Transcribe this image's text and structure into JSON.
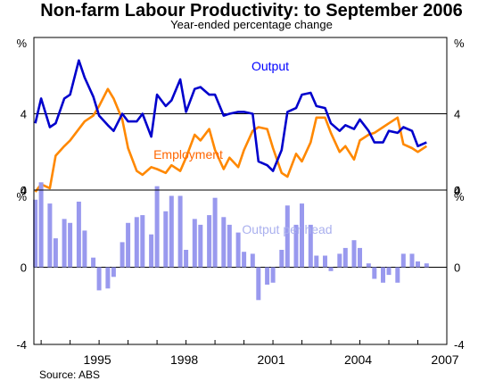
{
  "title": "Non-farm Labour Productivity: to September 2006",
  "subtitle": "Year-ended percentage change",
  "source": "Source: ABS",
  "chart_data": [
    {
      "type": "line",
      "panel": "top",
      "axis_unit": "%",
      "ylim": [
        0,
        8
      ],
      "yticks": [
        0,
        4
      ],
      "xlim": [
        1992.75,
        2007
      ],
      "xticks": [
        "1995",
        "1998",
        "2001",
        "2004",
        "2007"
      ],
      "grid": true,
      "series": [
        {
          "name": "Output",
          "color": "#0000cc",
          "label_color": "#0000ff",
          "x": [
            1992.8,
            1993.0,
            1993.3,
            1993.5,
            1993.8,
            1994.0,
            1994.3,
            1994.5,
            1994.8,
            1995.0,
            1995.3,
            1995.5,
            1995.8,
            1996.0,
            1996.3,
            1996.5,
            1996.8,
            1997.0,
            1997.3,
            1997.5,
            1997.8,
            1998.0,
            1998.3,
            1998.5,
            1998.8,
            1999.0,
            1999.3,
            1999.5,
            1999.8,
            2000.0,
            2000.3,
            2000.5,
            2000.8,
            2001.0,
            2001.3,
            2001.5,
            2001.8,
            2002.0,
            2002.3,
            2002.5,
            2002.8,
            2003.0,
            2003.3,
            2003.5,
            2003.8,
            2004.0,
            2004.3,
            2004.5,
            2004.8,
            2005.0,
            2005.3,
            2005.5,
            2005.8,
            2006.0,
            2006.3,
            2006.5
          ],
          "values": [
            3.5,
            4.8,
            3.3,
            3.5,
            4.8,
            5.0,
            6.8,
            5.9,
            4.9,
            3.9,
            3.4,
            3.1,
            4.0,
            3.6,
            3.6,
            4.0,
            2.8,
            5.0,
            4.4,
            4.7,
            5.8,
            4.1,
            5.3,
            5.4,
            5.0,
            5.0,
            3.9,
            4.0,
            4.1,
            4.1,
            4.0,
            1.5,
            1.3,
            1.0,
            2.1,
            4.1,
            4.3,
            5.0,
            5.1,
            4.4,
            4.3,
            3.5,
            3.1,
            3.4,
            3.2,
            3.7,
            3.1,
            2.5,
            2.5,
            3.1,
            3.0,
            3.3,
            3.1,
            2.3,
            2.5,
            null
          ],
          "values_note": ""
        },
        {
          "name": "Employment",
          "color": "#ff8800",
          "label_color": "#ff6600",
          "x": [
            1992.8,
            1993.0,
            1993.3,
            1993.5,
            1993.8,
            1994.0,
            1994.3,
            1994.5,
            1994.8,
            1995.0,
            1995.3,
            1995.5,
            1995.8,
            1996.0,
            1996.3,
            1996.5,
            1996.8,
            1997.0,
            1997.3,
            1997.5,
            1997.8,
            1998.0,
            1998.3,
            1998.5,
            1998.8,
            1999.0,
            1999.3,
            1999.5,
            1999.8,
            2000.0,
            2000.3,
            2000.5,
            2000.8,
            2001.0,
            2001.3,
            2001.5,
            2001.8,
            2002.0,
            2002.3,
            2002.5,
            2002.8,
            2003.0,
            2003.3,
            2003.5,
            2003.8,
            2004.0,
            2004.3,
            2004.5,
            2004.8,
            2005.0,
            2005.3,
            2005.5,
            2005.8,
            2006.0,
            2006.3
          ],
          "values": [
            -0.1,
            0.3,
            0.1,
            1.8,
            2.3,
            2.6,
            3.2,
            3.6,
            3.9,
            4.4,
            5.3,
            4.8,
            3.7,
            2.2,
            1.0,
            0.8,
            1.2,
            1.1,
            0.9,
            1.3,
            1.0,
            1.7,
            2.9,
            2.6,
            3.2,
            2.1,
            1.1,
            1.7,
            1.2,
            2.1,
            3.1,
            3.3,
            3.2,
            2.2,
            0.9,
            0.7,
            1.9,
            1.5,
            2.5,
            3.8,
            3.8,
            3.0,
            2.0,
            2.3,
            1.6,
            2.6,
            2.9,
            3.0,
            3.3,
            3.5,
            3.8,
            2.4,
            2.2,
            2.0,
            2.3
          ]
        }
      ],
      "series_labels": [
        {
          "text": "Output"
        },
        {
          "text": "Employment"
        }
      ]
    },
    {
      "type": "bar",
      "panel": "bottom",
      "axis_unit": "%",
      "ylim": [
        -4,
        4
      ],
      "yticks": [
        -4,
        0,
        4
      ],
      "xlim": [
        1992.75,
        2007
      ],
      "xticks": [
        "1995",
        "1998",
        "2001",
        "2004",
        "2007"
      ],
      "grid": true,
      "series": [
        {
          "name": "Output per head",
          "color": "#9999ee",
          "label_color": "#aab0ee",
          "x": [
            1992.8,
            1993.0,
            1993.3,
            1993.5,
            1993.8,
            1994.0,
            1994.3,
            1994.5,
            1994.8,
            1995.0,
            1995.3,
            1995.5,
            1995.8,
            1996.0,
            1996.3,
            1996.5,
            1996.8,
            1997.0,
            1997.3,
            1997.5,
            1997.8,
            1998.0,
            1998.3,
            1998.5,
            1998.8,
            1999.0,
            1999.3,
            1999.5,
            1999.8,
            2000.0,
            2000.3,
            2000.5,
            2000.8,
            2001.0,
            2001.3,
            2001.5,
            2001.8,
            2002.0,
            2002.3,
            2002.5,
            2002.8,
            2003.0,
            2003.3,
            2003.5,
            2003.8,
            2004.0,
            2004.3,
            2004.5,
            2004.8,
            2005.0,
            2005.3,
            2005.5,
            2005.8,
            2006.0,
            2006.3
          ],
          "values": [
            3.5,
            4.4,
            3.3,
            1.5,
            2.5,
            2.3,
            3.4,
            1.9,
            0.5,
            -1.2,
            -1.1,
            -0.5,
            1.3,
            2.3,
            2.6,
            2.7,
            1.7,
            4.2,
            2.9,
            3.7,
            3.7,
            0.9,
            2.5,
            2.2,
            2.7,
            3.6,
            2.6,
            2.2,
            1.8,
            0.8,
            0.7,
            -1.7,
            -0.9,
            -0.8,
            0.9,
            3.2,
            2.2,
            3.3,
            2.2,
            0.6,
            0.6,
            -0.2,
            0.7,
            1.0,
            1.4,
            1.0,
            0.2,
            -0.6,
            -0.8,
            -0.4,
            -0.8,
            0.7,
            0.7,
            0.3,
            0.2
          ]
        }
      ],
      "series_labels": [
        {
          "text": "Output per head"
        }
      ]
    }
  ]
}
